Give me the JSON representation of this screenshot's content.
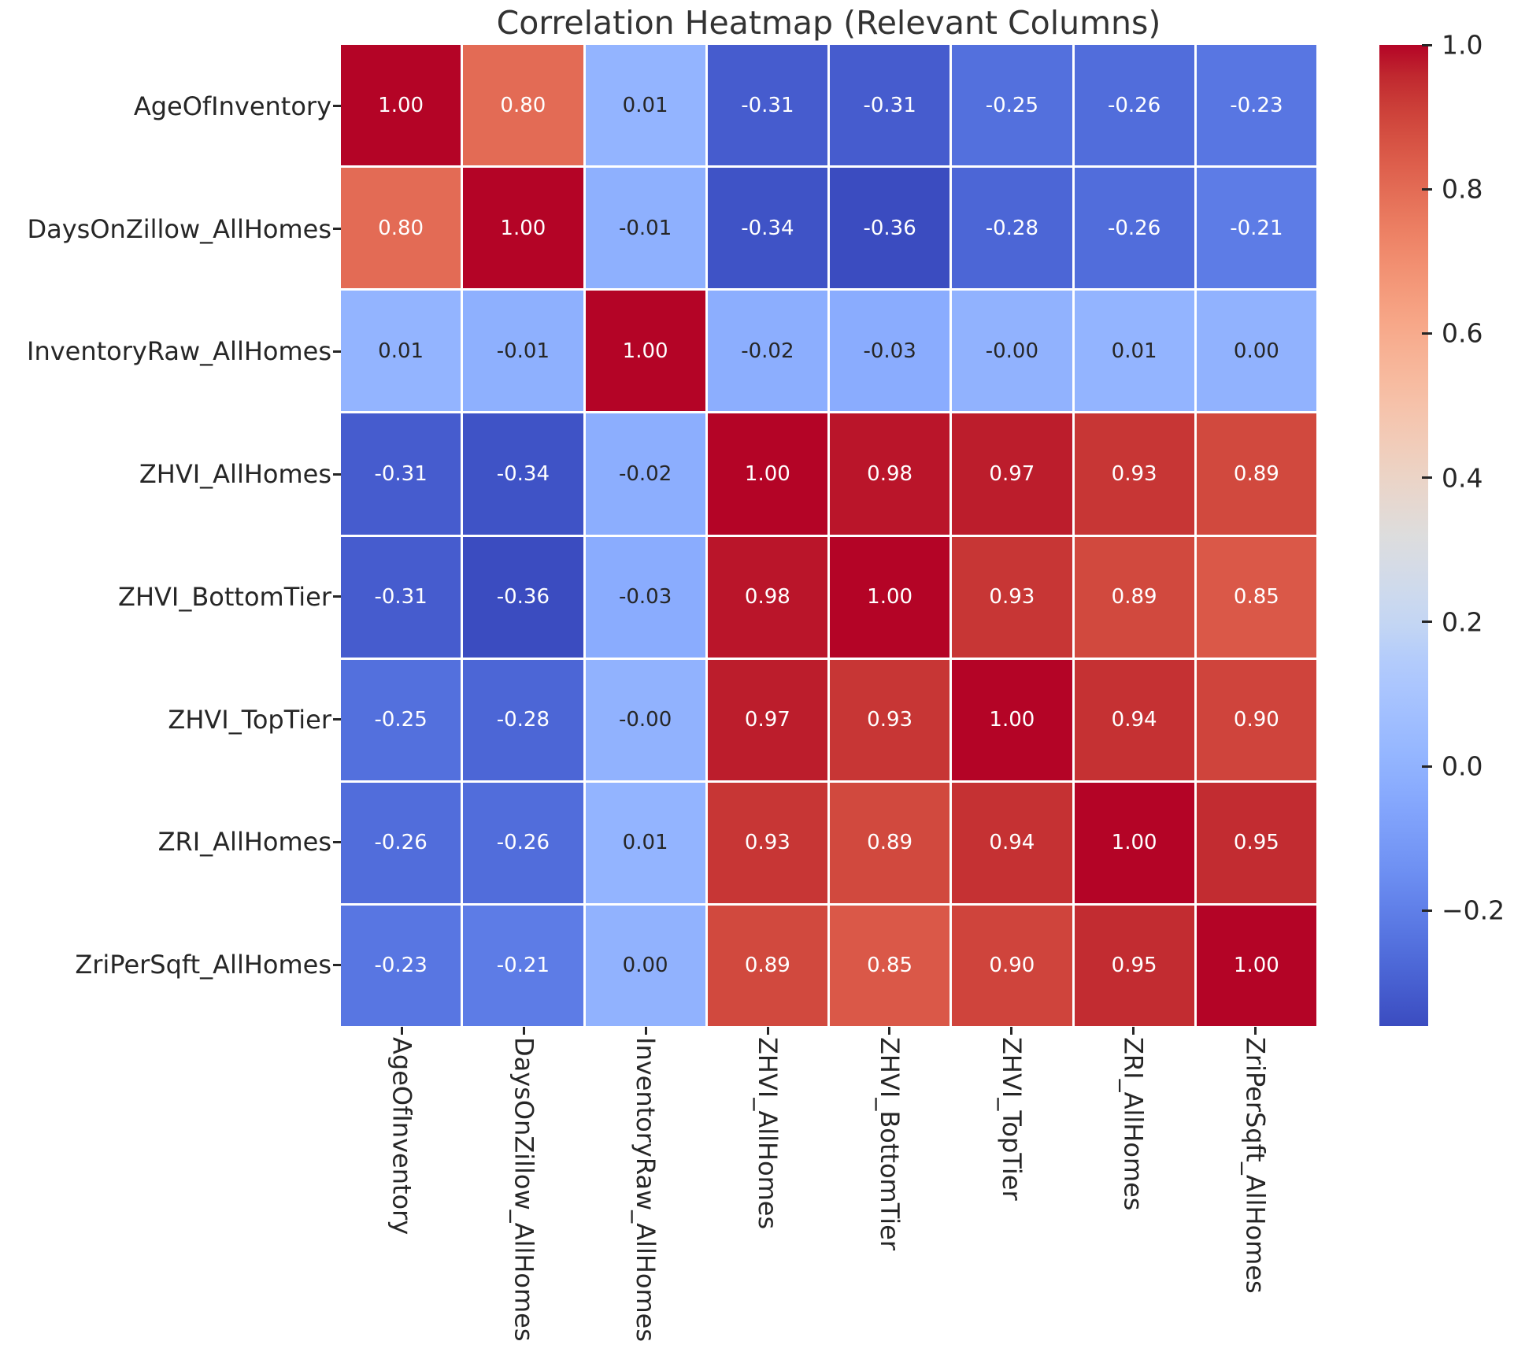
{
  "chart_data": {
    "type": "heatmap",
    "title": "Correlation Heatmap (Relevant Columns)",
    "labels": [
      "AgeOfInventory",
      "DaysOnZillow_AllHomes",
      "InventoryRaw_AllHomes",
      "ZHVI_AllHomes",
      "ZHVI_BottomTier",
      "ZHVI_TopTier",
      "ZRI_AllHomes",
      "ZriPerSqft_AllHomes"
    ],
    "matrix": [
      [
        "1.00",
        "0.80",
        "0.01",
        "-0.31",
        "-0.31",
        "-0.25",
        "-0.26",
        "-0.23"
      ],
      [
        "0.80",
        "1.00",
        "-0.01",
        "-0.34",
        "-0.36",
        "-0.28",
        "-0.26",
        "-0.21"
      ],
      [
        "0.01",
        "-0.01",
        "1.00",
        "-0.02",
        "-0.03",
        "-0.00",
        "0.01",
        "0.00"
      ],
      [
        "-0.31",
        "-0.34",
        "-0.02",
        "1.00",
        "0.98",
        "0.97",
        "0.93",
        "0.89"
      ],
      [
        "-0.31",
        "-0.36",
        "-0.03",
        "0.98",
        "1.00",
        "0.93",
        "0.89",
        "0.85"
      ],
      [
        "-0.25",
        "-0.28",
        "-0.00",
        "0.97",
        "0.93",
        "1.00",
        "0.94",
        "0.90"
      ],
      [
        "-0.26",
        "-0.26",
        "0.01",
        "0.93",
        "0.89",
        "0.94",
        "1.00",
        "0.95"
      ],
      [
        "-0.23",
        "-0.21",
        "0.00",
        "0.89",
        "0.85",
        "0.90",
        "0.95",
        "1.00"
      ]
    ],
    "vmin": -0.36,
    "vmax": 1.0,
    "colormap_name": "coolwarm",
    "colormap_stops": [
      "#3b4cc0",
      "#445acc",
      "#4d68d7",
      "#5775e1",
      "#6282ea",
      "#6d8ff2",
      "#789af7",
      "#82a4fc",
      "#8caefe",
      "#96b7ff",
      "#a0beff",
      "#aac5fe",
      "#b4ccfb",
      "#c2d5f4",
      "#ccd9ee",
      "#d5dbe6",
      "#dddddd",
      "#e5d8d1",
      "#ecd3c5",
      "#f1ccb9",
      "#f5c4ad",
      "#f7bba0",
      "#f7b194",
      "#f7a687",
      "#f49a7b",
      "#f18d6f",
      "#ec7f63",
      "#e57058",
      "#de604d",
      "#d55042",
      "#cb3e38",
      "#c0282f",
      "#b40426"
    ],
    "colorbar_ticks": [
      {
        "label": "1.0",
        "value": 1.0
      },
      {
        "label": "0.8",
        "value": 0.8
      },
      {
        "label": "0.6",
        "value": 0.6
      },
      {
        "label": "0.4",
        "value": 0.4
      },
      {
        "label": "0.2",
        "value": 0.2
      },
      {
        "label": "0.0",
        "value": 0.0
      },
      {
        "label": "−0.2",
        "value": -0.2
      }
    ],
    "annotation_colors": {
      "dark": "#262626",
      "light": "#ffffff"
    },
    "cell_border_color": "#ffffff",
    "title_color": "#333333",
    "tick_label_color": "#262626"
  }
}
